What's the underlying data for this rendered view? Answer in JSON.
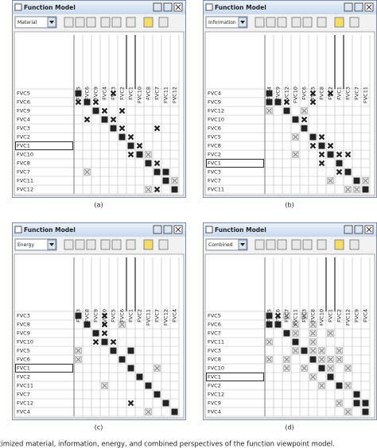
{
  "panels": [
    {
      "title": "Function Model",
      "perspective": "Material",
      "caption": "(a)",
      "selected": "FVC1",
      "order": [
        "FVC5",
        "FVC6",
        "FVC9",
        "FVC4",
        "FVC3",
        "FVC2",
        "FVC1",
        "FVC10",
        "FVC8",
        "FVC7",
        "FVC11",
        "FVC12"
      ],
      "cells": [
        "#...X.......",
        "X#X.........",
        "..#X.X......",
        ".X.#X.......",
        "....#X...X..",
        ".....#X.....",
        "......#X....",
        "......X#o...",
        "........#X..",
        ".o.......##.",
        "..........#o",
        "........oX.#"
      ]
    },
    {
      "title": "Function Model",
      "perspective": "Information",
      "caption": "(b)",
      "selected": "FVC1",
      "order": [
        "FVC4",
        "FVC9",
        "FVC12",
        "FVC10",
        "FVC6",
        "FVC5",
        "FVC8",
        "FVC2",
        "FVC1",
        "FVC3",
        "FVC7",
        "FVC11"
      ],
      "cells": [
        "#....X.X....",
        "##X..X......",
        "o.#.o.......",
        "...#X.......",
        "....#.......",
        "...o.#X.....",
        ".....X#X....",
        "...o..X#XX..",
        "......X.#...",
        "........X#..",
        ".......o..#o",
        ".........oo#"
      ]
    },
    {
      "title": "Function Model",
      "perspective": "Energy",
      "caption": "(c)",
      "selected": "FVC1",
      "order": [
        "FVC3",
        "FVC8",
        "FVC9",
        "FVC10",
        "FVC5",
        "FVC6",
        "FVC1",
        "FVC2",
        "FVC11",
        "FVC7",
        "FVC12",
        "FVC4"
      ],
      "cells": [
        "#..X........",
        ".#.X.o......",
        "..#X........",
        "..X#X.......",
        "o...#.#.....",
        "o....#......",
        "......#..o..",
        ".......#....",
        "...o....#...",
        ".........#..",
        "......X...#.",
        "........o..#"
      ]
    },
    {
      "title": "Function Model",
      "perspective": "Combined",
      "caption": "(d)",
      "selected": "FVC1",
      "order": [
        "FVC5",
        "FVC6",
        "FVC7",
        "FVC11",
        "FVC3",
        "FVC8",
        "FVC10",
        "FVC1",
        "FVC2",
        "FVC12",
        "FVC9",
        "FVC4"
      ],
      "cells": [
        "#Xo.o.......",
        "##.o.o......",
        "..#o.o.o....",
        "o..#.o......",
        "...o#oo.o...",
        "o.o..#ooo...",
        "..o.o.#o.o..",
        ".....o.#....",
        "......o.#o..",
        "..........#.",
        "........o.##",
        ".........o.#"
      ]
    }
  ],
  "caption": "timized material, information, energy, and combined perspectives of the function viewpoint model."
}
